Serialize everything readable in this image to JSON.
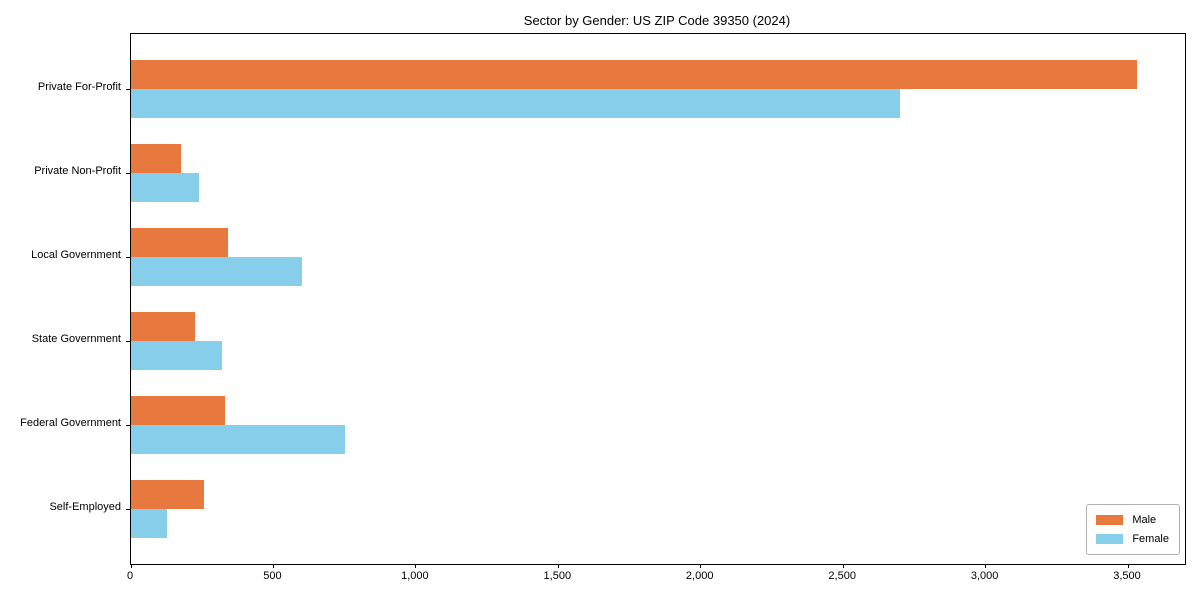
{
  "title": "Sector by Gender: US ZIP Code 39350 (2024)",
  "colors": {
    "male": "#e8793e",
    "female": "#87ceeb",
    "axis": "#000000",
    "legend_border": "#b0b0b0",
    "background": "#ffffff"
  },
  "legend": {
    "position": "lower right",
    "items": [
      {
        "label": "Male",
        "color": "#e8793e"
      },
      {
        "label": "Female",
        "color": "#87ceeb"
      }
    ]
  },
  "chart_data": {
    "type": "bar",
    "orientation": "horizontal",
    "title": "Sector by Gender: US ZIP Code 39350 (2024)",
    "categories": [
      "Private For-Profit",
      "Private Non-Profit",
      "Local Government",
      "State Government",
      "Federal Government",
      "Self-Employed"
    ],
    "series": [
      {
        "name": "Male",
        "color": "#e8793e",
        "values": [
          3530,
          175,
          340,
          225,
          330,
          255
        ]
      },
      {
        "name": "Female",
        "color": "#87ceeb",
        "values": [
          2700,
          240,
          600,
          320,
          750,
          125
        ]
      }
    ],
    "xlabel": "",
    "ylabel": "",
    "xlim": [
      0,
      3700
    ],
    "xticks": [
      0,
      500,
      1000,
      1500,
      2000,
      2500,
      3000,
      3500
    ],
    "xtick_labels": [
      "0",
      "500",
      "1,000",
      "1,500",
      "2,000",
      "2,500",
      "3,000",
      "3,500"
    ],
    "grid": false,
    "legend_position": "lower right"
  }
}
